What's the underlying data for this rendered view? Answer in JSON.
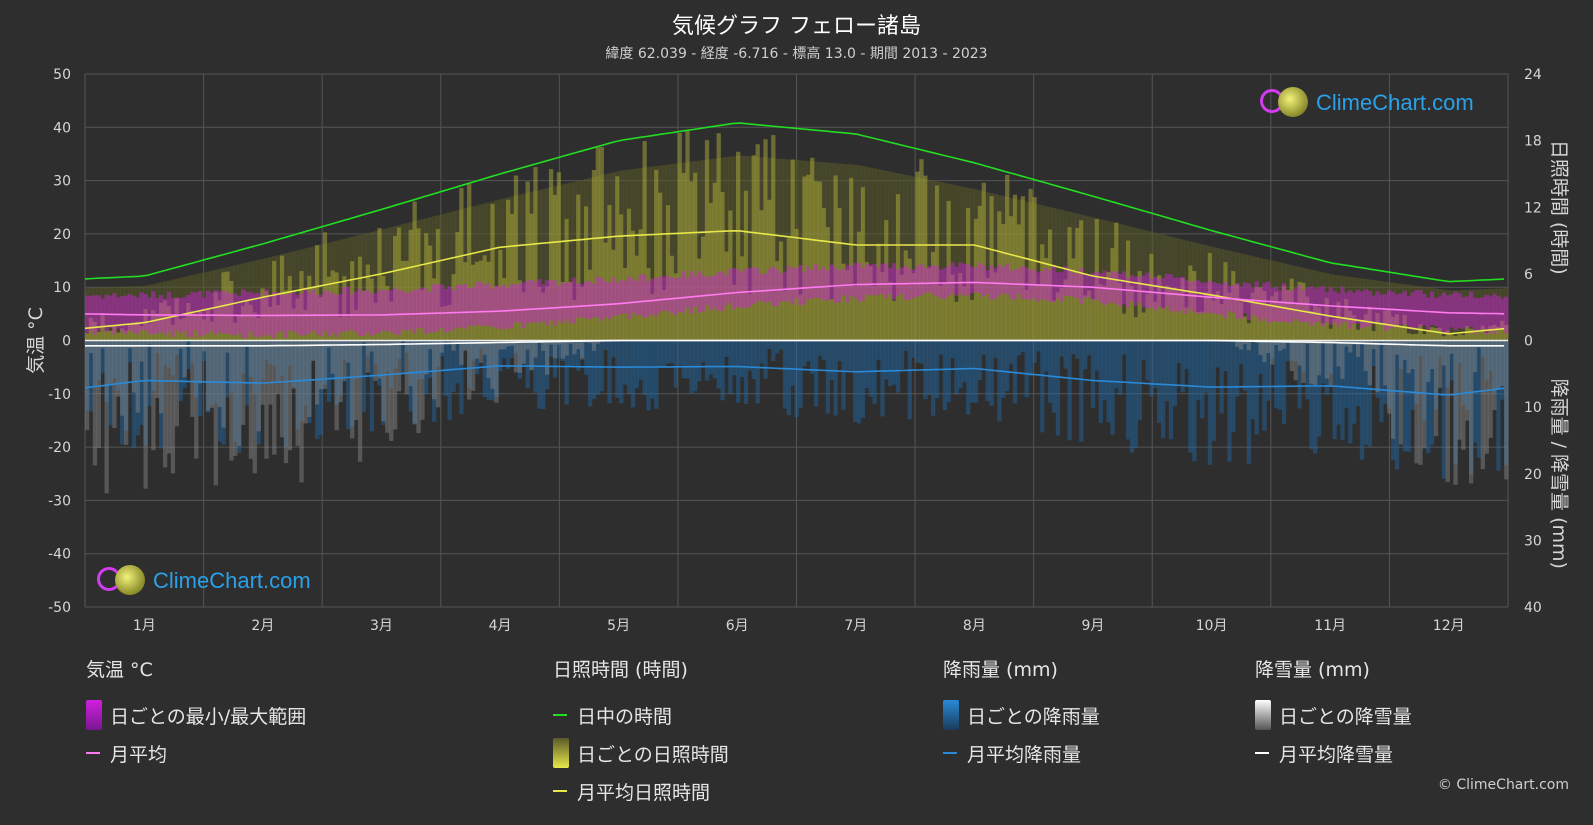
{
  "title": "気候グラフ フェロー諸島",
  "subtitle": "緯度 62.039 - 経度 -6.716 - 標高 13.0 - 期間 2013 - 2023",
  "logo_text": "ClimeChart.com",
  "copyright": "© ClimeChart.com",
  "colors": {
    "daylight": "#22dd22",
    "sunshine_monthly": "#e8e84a",
    "sunshine_daily": "#b8b83a",
    "temp_monthly": "#ff7af0",
    "temp_range": "#d020e0",
    "rain_monthly": "#2a8ad8",
    "rain_daily": "#1e6aa8",
    "snow_monthly": "#ffffff",
    "snow_daily": "#8a8a8a"
  },
  "chart_data": {
    "type": "line",
    "months": [
      "1月",
      "2月",
      "3月",
      "4月",
      "5月",
      "6月",
      "7月",
      "8月",
      "9月",
      "10月",
      "11月",
      "12月"
    ],
    "left_axis": {
      "label": "気温 °C",
      "ticks": [
        50,
        40,
        30,
        20,
        10,
        0,
        -10,
        -20,
        -30,
        -40,
        -50
      ],
      "range": [
        -50,
        50
      ]
    },
    "right_axis_top": {
      "label": "日照時間 (時間)",
      "ticks": [
        24,
        18,
        12,
        6,
        0
      ],
      "range": [
        0,
        24
      ]
    },
    "right_axis_bottom": {
      "label": "降雨量 / 降雪量 (mm)",
      "ticks": [
        0,
        10,
        20,
        30,
        40
      ],
      "range": [
        0,
        40
      ]
    },
    "grid": true,
    "series": [
      {
        "name": "日中の時間",
        "axis": "sunshine_hours",
        "values": [
          5.8,
          8.7,
          11.8,
          15.0,
          18.0,
          19.6,
          18.6,
          16.0,
          13.0,
          9.9,
          7.0,
          5.3
        ]
      },
      {
        "name": "月平均日照時間",
        "axis": "sunshine_hours",
        "values": [
          1.6,
          3.9,
          6.0,
          8.4,
          9.4,
          9.9,
          8.6,
          8.6,
          5.8,
          4.1,
          2.2,
          0.6
        ]
      },
      {
        "name": "月平均",
        "axis": "temperature_c",
        "values": [
          4.8,
          4.7,
          4.8,
          5.5,
          6.9,
          9.0,
          10.5,
          10.9,
          10.0,
          8.1,
          6.5,
          5.2
        ]
      },
      {
        "name": "日ごとの最小/最大範囲",
        "axis": "temperature_c",
        "min": [
          1.5,
          1.0,
          1.5,
          2.5,
          4.5,
          6.5,
          8.0,
          8.5,
          7.5,
          5.0,
          3.0,
          2.0
        ],
        "max": [
          8.5,
          9.0,
          9.5,
          10.5,
          11.5,
          13.0,
          14.0,
          14.0,
          13.0,
          11.0,
          9.5,
          8.5
        ]
      },
      {
        "name": "月平均降雨量",
        "axis": "precip_mm",
        "values": [
          6.0,
          6.4,
          5.2,
          3.8,
          4.0,
          3.9,
          4.7,
          4.2,
          6.0,
          7.0,
          6.8,
          8.2
        ]
      },
      {
        "name": "月平均降雪量",
        "axis": "precip_mm",
        "values": [
          0.8,
          0.8,
          0.6,
          0.3,
          0.0,
          0.0,
          0.0,
          0.0,
          0.0,
          0.0,
          0.3,
          0.8
        ]
      }
    ]
  },
  "legend": {
    "temp": {
      "header": "気温 °C",
      "range_label": "日ごとの最小/最大範囲",
      "avg_label": "月平均"
    },
    "sun": {
      "header": "日照時間 (時間)",
      "daylight_label": "日中の時間",
      "daily_label": "日ごとの日照時間",
      "avg_label": "月平均日照時間"
    },
    "rain": {
      "header": "降雨量 (mm)",
      "daily_label": "日ごとの降雨量",
      "avg_label": "月平均降雨量"
    },
    "snow": {
      "header": "降雪量 (mm)",
      "daily_label": "日ごとの降雪量",
      "avg_label": "月平均降雪量"
    }
  }
}
